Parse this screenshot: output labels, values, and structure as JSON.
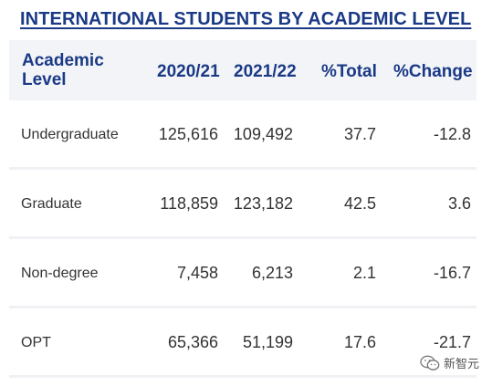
{
  "title": "INTERNATIONAL STUDENTS BY ACADEMIC LEVEL",
  "headers": {
    "level": "Academic Level",
    "y2020": "2020/21",
    "y2021": "2021/22",
    "total": "%Total",
    "change": "%Change"
  },
  "rows": [
    {
      "level": "Undergraduate",
      "y2020": "125,616",
      "y2021": "109,492",
      "total": "37.7",
      "change": "-12.8"
    },
    {
      "level": "Graduate",
      "y2020": "118,859",
      "y2021": "123,182",
      "total": "42.5",
      "change": "3.6"
    },
    {
      "level": "Non-degree",
      "y2020": "7,458",
      "y2021": "6,213",
      "total": "2.1",
      "change": "-16.7"
    },
    {
      "level": "OPT",
      "y2020": "65,366",
      "y2021": "51,199",
      "total": "17.6",
      "change": "-21.7"
    }
  ],
  "watermark": {
    "icon": "wechat-icon",
    "text": "新智元"
  },
  "colors": {
    "header_text": "#1a3a86",
    "header_bg": "#f3f4f7",
    "body_text": "#333333"
  }
}
